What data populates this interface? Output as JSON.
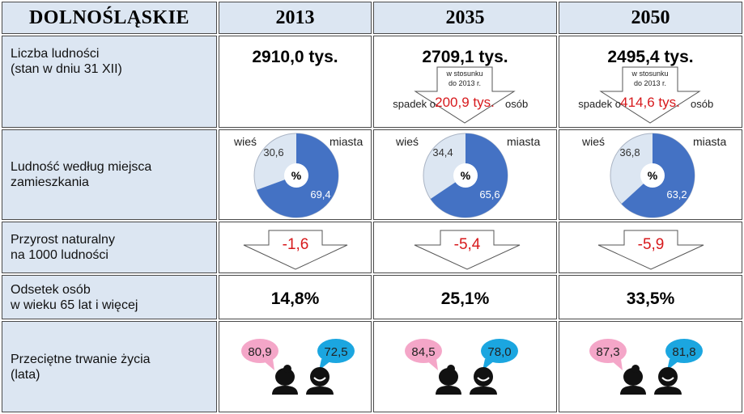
{
  "region": "DOLNOŚLĄSKIE",
  "years": [
    "2013",
    "2035",
    "2050"
  ],
  "rows": {
    "population": {
      "label1": "Liczba ludności",
      "label2": "(stan w dniu 31 XII)"
    },
    "residence": {
      "label1": "Ludność według miejsca",
      "label2": "zamieszkania"
    },
    "natural": {
      "label1": "Przyrost naturalny",
      "label2": "na 1000  ludności"
    },
    "elderly": {
      "label1": "Odsetek osób",
      "label2": "w wieku 65 lat i więcej"
    },
    "life": {
      "label1": "Przeciętne trwanie życia",
      "label2": "(lata)"
    }
  },
  "population": [
    "2910,0 tys.",
    "2709,1 tys.",
    "2495,4 tys."
  ],
  "decline": {
    "note1": "w stosunku",
    "note2": "do 2013 r.",
    "prefix": "spadek o",
    "suffix": "osób",
    "values": [
      "",
      "200,9 tys.",
      "414,6 tys."
    ]
  },
  "pie": {
    "rural_label": "wieś",
    "urban_label": "miasta",
    "center": "%",
    "rural": [
      "30,6",
      "34,4",
      "36,8"
    ],
    "urban": [
      "69,4",
      "65,6",
      "63,2"
    ],
    "rural_color": "#dce6f2",
    "urban_color": "#4472c4"
  },
  "natural_increase": [
    "-1,6",
    "-5,4",
    "-5,9"
  ],
  "elderly_share": [
    "14,8%",
    "25,1%",
    "33,5%"
  ],
  "life_expectancy": {
    "women": [
      "80,9",
      "84,5",
      "87,3"
    ],
    "men": [
      "72,5",
      "78,0",
      "81,8"
    ],
    "women_color": "#f4a6c8",
    "men_color": "#1ba6e0"
  },
  "colors": {
    "accent_red": "#d7191c",
    "header_bg": "#dce6f2"
  }
}
